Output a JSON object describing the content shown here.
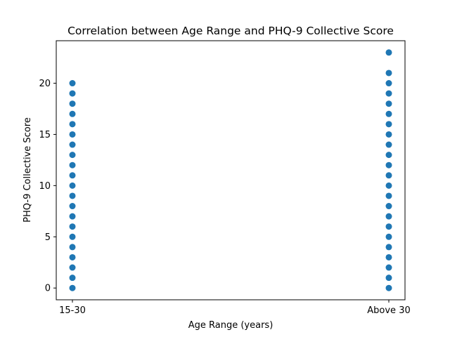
{
  "chart_data": {
    "type": "scatter",
    "title": "Correlation between Age Range and PHQ-9 Collective Score",
    "xlabel": "Age Range (years)",
    "ylabel": "PHQ-9 Collective Score",
    "categories": [
      "15-30",
      "Above 30"
    ],
    "ylim": [
      -1.15,
      24.15
    ],
    "yticks": [
      0,
      5,
      10,
      15,
      20
    ],
    "grid": false,
    "marker_color": "#1f77b4",
    "series": [
      {
        "points": [
          {
            "x": "15-30",
            "y": [
              0,
              1,
              2,
              3,
              4,
              5,
              6,
              7,
              8,
              9,
              10,
              11,
              12,
              13,
              14,
              15,
              16,
              17,
              18,
              19,
              20
            ]
          },
          {
            "x": "Above 30",
            "y": [
              0,
              1,
              2,
              3,
              4,
              5,
              6,
              7,
              8,
              9,
              10,
              11,
              12,
              13,
              14,
              15,
              16,
              17,
              18,
              19,
              20,
              21,
              23
            ]
          }
        ]
      }
    ]
  }
}
